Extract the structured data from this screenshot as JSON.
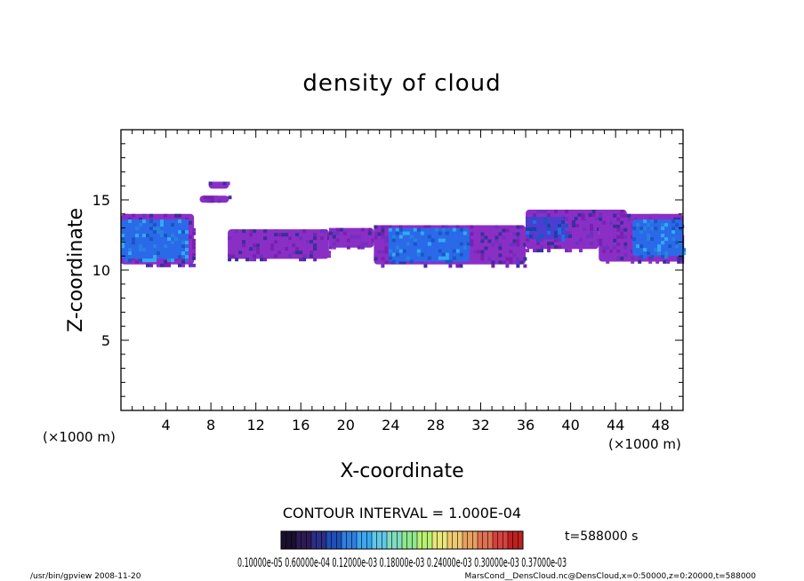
{
  "chart_data": {
    "type": "heatmap",
    "title": "density of cloud",
    "xlabel": "X-coordinate",
    "ylabel": "Z-coordinate",
    "x_unit": "(×1000 m)",
    "x_unit_right": "(×1000 m)",
    "xlim": [
      0,
      50
    ],
    "ylim": [
      0,
      20
    ],
    "x_ticks": [
      4,
      8,
      12,
      16,
      20,
      24,
      28,
      32,
      36,
      40,
      44,
      48
    ],
    "y_ticks": [
      5,
      10,
      15
    ],
    "contour_interval": "CONTOUR INTERVAL = 1.000E-04",
    "time_label": "t=588000 s",
    "colorbar_labels": "0.10000e-05 0.60000e-04 0.12000e-03 0.18000e-03 0.24000e-03 0.30000e-03 0.37000e-03",
    "colorbar_colors": [
      "#1a0f2e",
      "#2d1a55",
      "#2b2f88",
      "#1f4fb8",
      "#2f7fe0",
      "#3aa7f0",
      "#5fc8e8",
      "#7fdcc0",
      "#8fe88f",
      "#b8f070",
      "#e8e87a",
      "#f0c870",
      "#e8a060",
      "#e07050",
      "#d84040",
      "#c02020"
    ],
    "regions": [
      {
        "level": 1,
        "x": [
          0,
          6.5
        ],
        "z": [
          10.4,
          14.0
        ]
      },
      {
        "level": 4,
        "x": [
          0,
          6.0
        ],
        "z": [
          10.8,
          13.6
        ]
      },
      {
        "level": 1,
        "x": [
          7.8,
          9.6
        ],
        "z": [
          15.8,
          16.3
        ]
      },
      {
        "level": 1,
        "x": [
          7.0,
          9.6
        ],
        "z": [
          14.8,
          15.3
        ]
      },
      {
        "level": 1,
        "x": [
          9.5,
          18.5
        ],
        "z": [
          10.8,
          12.9
        ]
      },
      {
        "level": 1,
        "x": [
          18.5,
          22.5
        ],
        "z": [
          11.6,
          13.0
        ]
      },
      {
        "level": 1,
        "x": [
          22.5,
          36.0
        ],
        "z": [
          10.4,
          13.2
        ]
      },
      {
        "level": 4,
        "x": [
          23.8,
          31.0
        ],
        "z": [
          10.6,
          13.0
        ]
      },
      {
        "level": 1,
        "x": [
          36.0,
          42.5
        ],
        "z": [
          11.5,
          14.3
        ]
      },
      {
        "level": 3,
        "x": [
          36.0,
          39.5
        ],
        "z": [
          12.2,
          13.8
        ]
      },
      {
        "level": 1,
        "x": [
          40.0,
          45.0
        ],
        "z": [
          13.6,
          14.3
        ]
      },
      {
        "level": 1,
        "x": [
          42.5,
          50.0
        ],
        "z": [
          10.6,
          14.0
        ]
      },
      {
        "level": 4,
        "x": [
          45.5,
          50.0
        ],
        "z": [
          11.0,
          13.6
        ]
      }
    ]
  },
  "footer": {
    "left": "/usr/bin/gpview   2008-11-20",
    "right": "MarsCond__DensCloud.nc@DensCloud,x=0:50000,z=0:20000,t=588000"
  }
}
